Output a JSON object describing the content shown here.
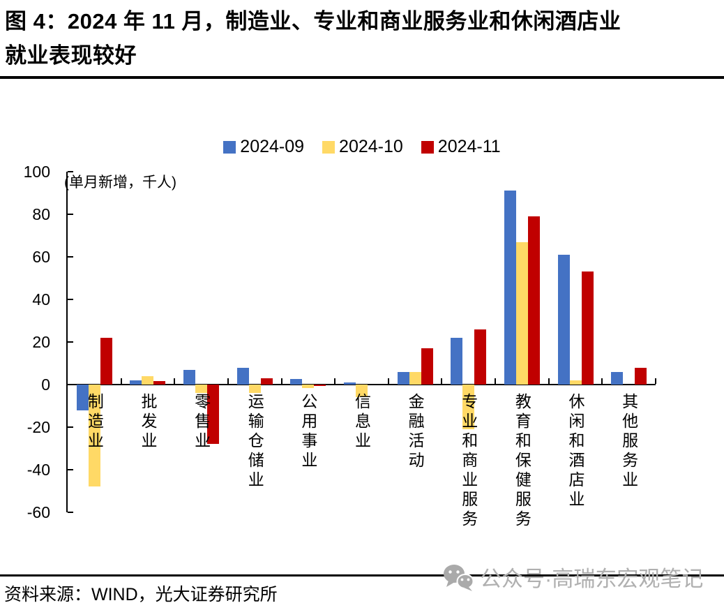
{
  "title": {
    "line1": "图 4：2024 年 11 月，制造业、专业和商业服务业和休闲酒店业",
    "line2": "就业表现较好"
  },
  "legend": [
    {
      "label": "2024-09",
      "color": "#4472C4"
    },
    {
      "label": "2024-10",
      "color": "#FFD966"
    },
    {
      "label": "2024-11",
      "color": "#C00000"
    }
  ],
  "unit_note": "(单月新增，千人)",
  "source": "资料来源：WIND，光大证券研究所",
  "watermark": {
    "icon": "wechat-icon",
    "text": "公众号·高瑞东宏观笔记",
    "color": "#b0b0b0"
  },
  "chart_data": {
    "type": "bar",
    "title": "2024年11月各行业就业单月新增（千人）",
    "ylabel": "单月新增，千人",
    "categories": [
      "制造业",
      "批发业",
      "零售业",
      "运输仓储业",
      "公用事业",
      "信息业",
      "金融活动",
      "专业和商业服务",
      "教育和保健服务",
      "休闲和酒店业",
      "其他服务业"
    ],
    "series": [
      {
        "name": "2024-09",
        "color": "#4472C4",
        "values": [
          -12,
          2,
          7,
          8,
          2.5,
          1,
          6,
          22,
          91,
          61,
          6
        ]
      },
      {
        "name": "2024-10",
        "color": "#FFD966",
        "values": [
          -48,
          4,
          -4,
          -4,
          -1.5,
          -6,
          6,
          -21,
          67,
          2,
          0
        ]
      },
      {
        "name": "2024-11",
        "color": "#C00000",
        "values": [
          22,
          1.5,
          -28,
          3,
          -0.5,
          0,
          17,
          26,
          79,
          53,
          8
        ]
      }
    ],
    "ylim": [
      -60,
      100
    ],
    "yticks": [
      100,
      80,
      60,
      40,
      20,
      0,
      -20,
      -40,
      -60
    ],
    "grid": false,
    "legend_position": "top"
  }
}
